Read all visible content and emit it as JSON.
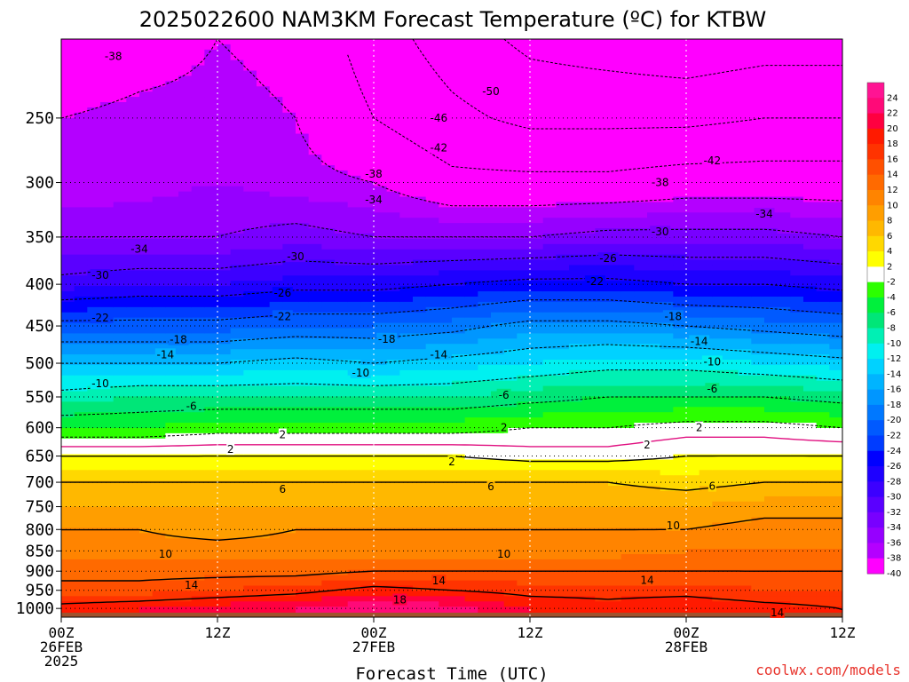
{
  "chart_data": {
    "type": "heatmap",
    "title": "2025022600 NAM3KM Forecast Temperature (ºC) for KTBW",
    "xlabel": "Forecast Time (UTC)",
    "ylabel": "",
    "credit": "coolwx.com/models",
    "x_ticks": [
      {
        "hours": 0,
        "line1": "00Z",
        "line2": "26FEB",
        "line3": "2025"
      },
      {
        "hours": 12,
        "line1": "12Z",
        "line2": "",
        "line3": ""
      },
      {
        "hours": 24,
        "line1": "00Z",
        "line2": "27FEB",
        "line3": ""
      },
      {
        "hours": 36,
        "line1": "12Z",
        "line2": "",
        "line3": ""
      },
      {
        "hours": 48,
        "line1": "00Z",
        "line2": "28FEB",
        "line3": ""
      },
      {
        "hours": 60,
        "line1": "12Z",
        "line2": "",
        "line3": ""
      }
    ],
    "xlim": [
      0,
      60
    ],
    "y_ticks": [
      250,
      300,
      350,
      400,
      450,
      500,
      550,
      600,
      650,
      700,
      750,
      800,
      850,
      900,
      950,
      1000
    ],
    "ylim": [
      200,
      1025
    ],
    "y_scale": "log",
    "grid": "dotted",
    "colorbar_levels": [
      24,
      22,
      20,
      18,
      16,
      14,
      12,
      10,
      8,
      6,
      4,
      2,
      -2,
      -4,
      -6,
      -8,
      -10,
      -12,
      -14,
      -16,
      -18,
      -20,
      -22,
      -24,
      -26,
      -28,
      -30,
      -32,
      -34,
      -36,
      -38,
      -40
    ],
    "colorbar_colors": [
      "#ff1493",
      "#ff0a78",
      "#ff0040",
      "#ff1a00",
      "#ff3300",
      "#ff5000",
      "#ff6a00",
      "#ff8400",
      "#ff9e00",
      "#ffb800",
      "#ffd800",
      "#ffff00",
      "#ffffff",
      "#2cff00",
      "#00f03c",
      "#00e678",
      "#00f0b4",
      "#00f0f0",
      "#00d2ff",
      "#00b4ff",
      "#0096ff",
      "#0078ff",
      "#005aff",
      "#003cff",
      "#0000ff",
      "#1e00ff",
      "#3c00ff",
      "#5a00ff",
      "#7800ff",
      "#9600ff",
      "#b400ff",
      "#ff00ff"
    ],
    "profile_hours": [
      0,
      6,
      12,
      18,
      24,
      30,
      36,
      42,
      48,
      54,
      60
    ],
    "profile_levels": [
      200,
      250,
      300,
      350,
      400,
      450,
      500,
      550,
      600,
      650,
      700,
      750,
      800,
      850,
      900,
      950,
      1000
    ],
    "temperature": [
      [
        -42,
        -40,
        -38,
        -39,
        -44,
        -48,
        -51,
        -52,
        -53,
        -52,
        -52
      ],
      [
        -38,
        -37,
        -37,
        -38,
        -42,
        -45,
        -47,
        -47,
        -47,
        -46,
        -46
      ],
      [
        -38,
        -37,
        -36,
        -37,
        -38,
        -41,
        -41,
        -41,
        -40,
        -40,
        -40
      ],
      [
        -34,
        -34,
        -34,
        -33,
        -34,
        -34,
        -34,
        -33,
        -33,
        -33,
        -34
      ],
      [
        -29,
        -28,
        -28,
        -27,
        -27,
        -26,
        -25,
        -25,
        -26,
        -26,
        -27
      ],
      [
        -21,
        -21,
        -21,
        -20,
        -20,
        -19,
        -17,
        -17,
        -18,
        -19,
        -20
      ],
      [
        -14,
        -14,
        -14,
        -13,
        -14,
        -13,
        -12,
        -11,
        -11,
        -12,
        -13
      ],
      [
        -9,
        -8,
        -8,
        -8,
        -8,
        -8,
        -7,
        -6,
        -6,
        -6,
        -7
      ],
      [
        -4,
        -4,
        -3,
        -3,
        -3,
        -3,
        -2,
        -2,
        -1,
        -1,
        -2
      ],
      [
        2,
        2,
        2,
        2,
        2,
        2,
        1,
        1,
        2,
        2,
        2
      ],
      [
        6,
        6,
        6,
        6,
        6,
        6,
        6,
        6,
        5,
        6,
        6
      ],
      [
        8,
        8,
        8,
        8,
        8,
        8,
        8,
        8,
        8,
        9,
        9
      ],
      [
        10,
        10,
        9,
        10,
        10,
        10,
        10,
        10,
        10,
        11,
        11
      ],
      [
        11,
        11,
        11,
        11,
        11,
        11,
        11,
        11,
        12,
        12,
        12
      ],
      [
        13,
        13,
        13,
        13,
        14,
        14,
        14,
        14,
        14,
        14,
        14
      ],
      [
        15,
        15,
        16,
        17,
        19,
        18,
        17,
        17,
        17,
        16,
        16
      ],
      [
        19,
        20,
        21,
        22,
        24,
        23,
        20,
        19,
        20,
        19,
        18
      ]
    ],
    "contours_solid": [
      2,
      6,
      10,
      14,
      18
    ],
    "contours_dashed": [
      -2,
      -6,
      -10,
      -14,
      -18,
      -22,
      -26,
      -30,
      -34,
      -38,
      -42,
      -46,
      -50
    ],
    "contour_labels": [
      {
        "text": "-38",
        "hours": 4,
        "p": 210
      },
      {
        "text": "-50",
        "hours": 33,
        "p": 232
      },
      {
        "text": "-46",
        "hours": 29,
        "p": 250
      },
      {
        "text": "-42",
        "hours": 29,
        "p": 272
      },
      {
        "text": "-42",
        "hours": 50,
        "p": 282
      },
      {
        "text": "-38",
        "hours": 24,
        "p": 293
      },
      {
        "text": "-38",
        "hours": 46,
        "p": 300
      },
      {
        "text": "-34",
        "hours": 24,
        "p": 315
      },
      {
        "text": "-34",
        "hours": 54,
        "p": 328
      },
      {
        "text": "-30",
        "hours": 46,
        "p": 345
      },
      {
        "text": "-34",
        "hours": 6,
        "p": 362
      },
      {
        "text": "-30",
        "hours": 18,
        "p": 370
      },
      {
        "text": "-26",
        "hours": 42,
        "p": 372
      },
      {
        "text": "-30",
        "hours": 3,
        "p": 390
      },
      {
        "text": "-26",
        "hours": 17,
        "p": 410
      },
      {
        "text": "-22",
        "hours": 41,
        "p": 397
      },
      {
        "text": "-22",
        "hours": 3,
        "p": 440
      },
      {
        "text": "-22",
        "hours": 17,
        "p": 438
      },
      {
        "text": "-18",
        "hours": 47,
        "p": 438
      },
      {
        "text": "-18",
        "hours": 9,
        "p": 468
      },
      {
        "text": "-18",
        "hours": 25,
        "p": 467
      },
      {
        "text": "-14",
        "hours": 49,
        "p": 470
      },
      {
        "text": "-14",
        "hours": 8,
        "p": 488
      },
      {
        "text": "-14",
        "hours": 29,
        "p": 488
      },
      {
        "text": "-10",
        "hours": 50,
        "p": 498
      },
      {
        "text": "-10",
        "hours": 3,
        "p": 530
      },
      {
        "text": "-10",
        "hours": 23,
        "p": 514
      },
      {
        "text": "-6",
        "hours": 34,
        "p": 547
      },
      {
        "text": "-6",
        "hours": 50,
        "p": 538
      },
      {
        "text": "-6",
        "hours": 10,
        "p": 565
      },
      {
        "text": "2",
        "hours": 17,
        "p": 612
      },
      {
        "text": "2",
        "hours": 34,
        "p": 600
      },
      {
        "text": "2",
        "hours": 49,
        "p": 600
      },
      {
        "text": "2",
        "hours": 13,
        "p": 638
      },
      {
        "text": "2",
        "hours": 30,
        "p": 661
      },
      {
        "text": "2",
        "hours": 45,
        "p": 630
      },
      {
        "text": "6",
        "hours": 17,
        "p": 714
      },
      {
        "text": "6",
        "hours": 33,
        "p": 709
      },
      {
        "text": "6",
        "hours": 50,
        "p": 708
      },
      {
        "text": "10",
        "hours": 47,
        "p": 791
      },
      {
        "text": "10",
        "hours": 8,
        "p": 858
      },
      {
        "text": "10",
        "hours": 34,
        "p": 858
      },
      {
        "text": "14",
        "hours": 10,
        "p": 937
      },
      {
        "text": "14",
        "hours": 29,
        "p": 925
      },
      {
        "text": "14",
        "hours": 45,
        "p": 924
      },
      {
        "text": "18",
        "hours": 26,
        "p": 976
      },
      {
        "text": "14",
        "hours": 55,
        "p": 1012
      }
    ],
    "colors": {
      "ground": "#a0522d",
      "freezing_line": "#e01080"
    }
  }
}
